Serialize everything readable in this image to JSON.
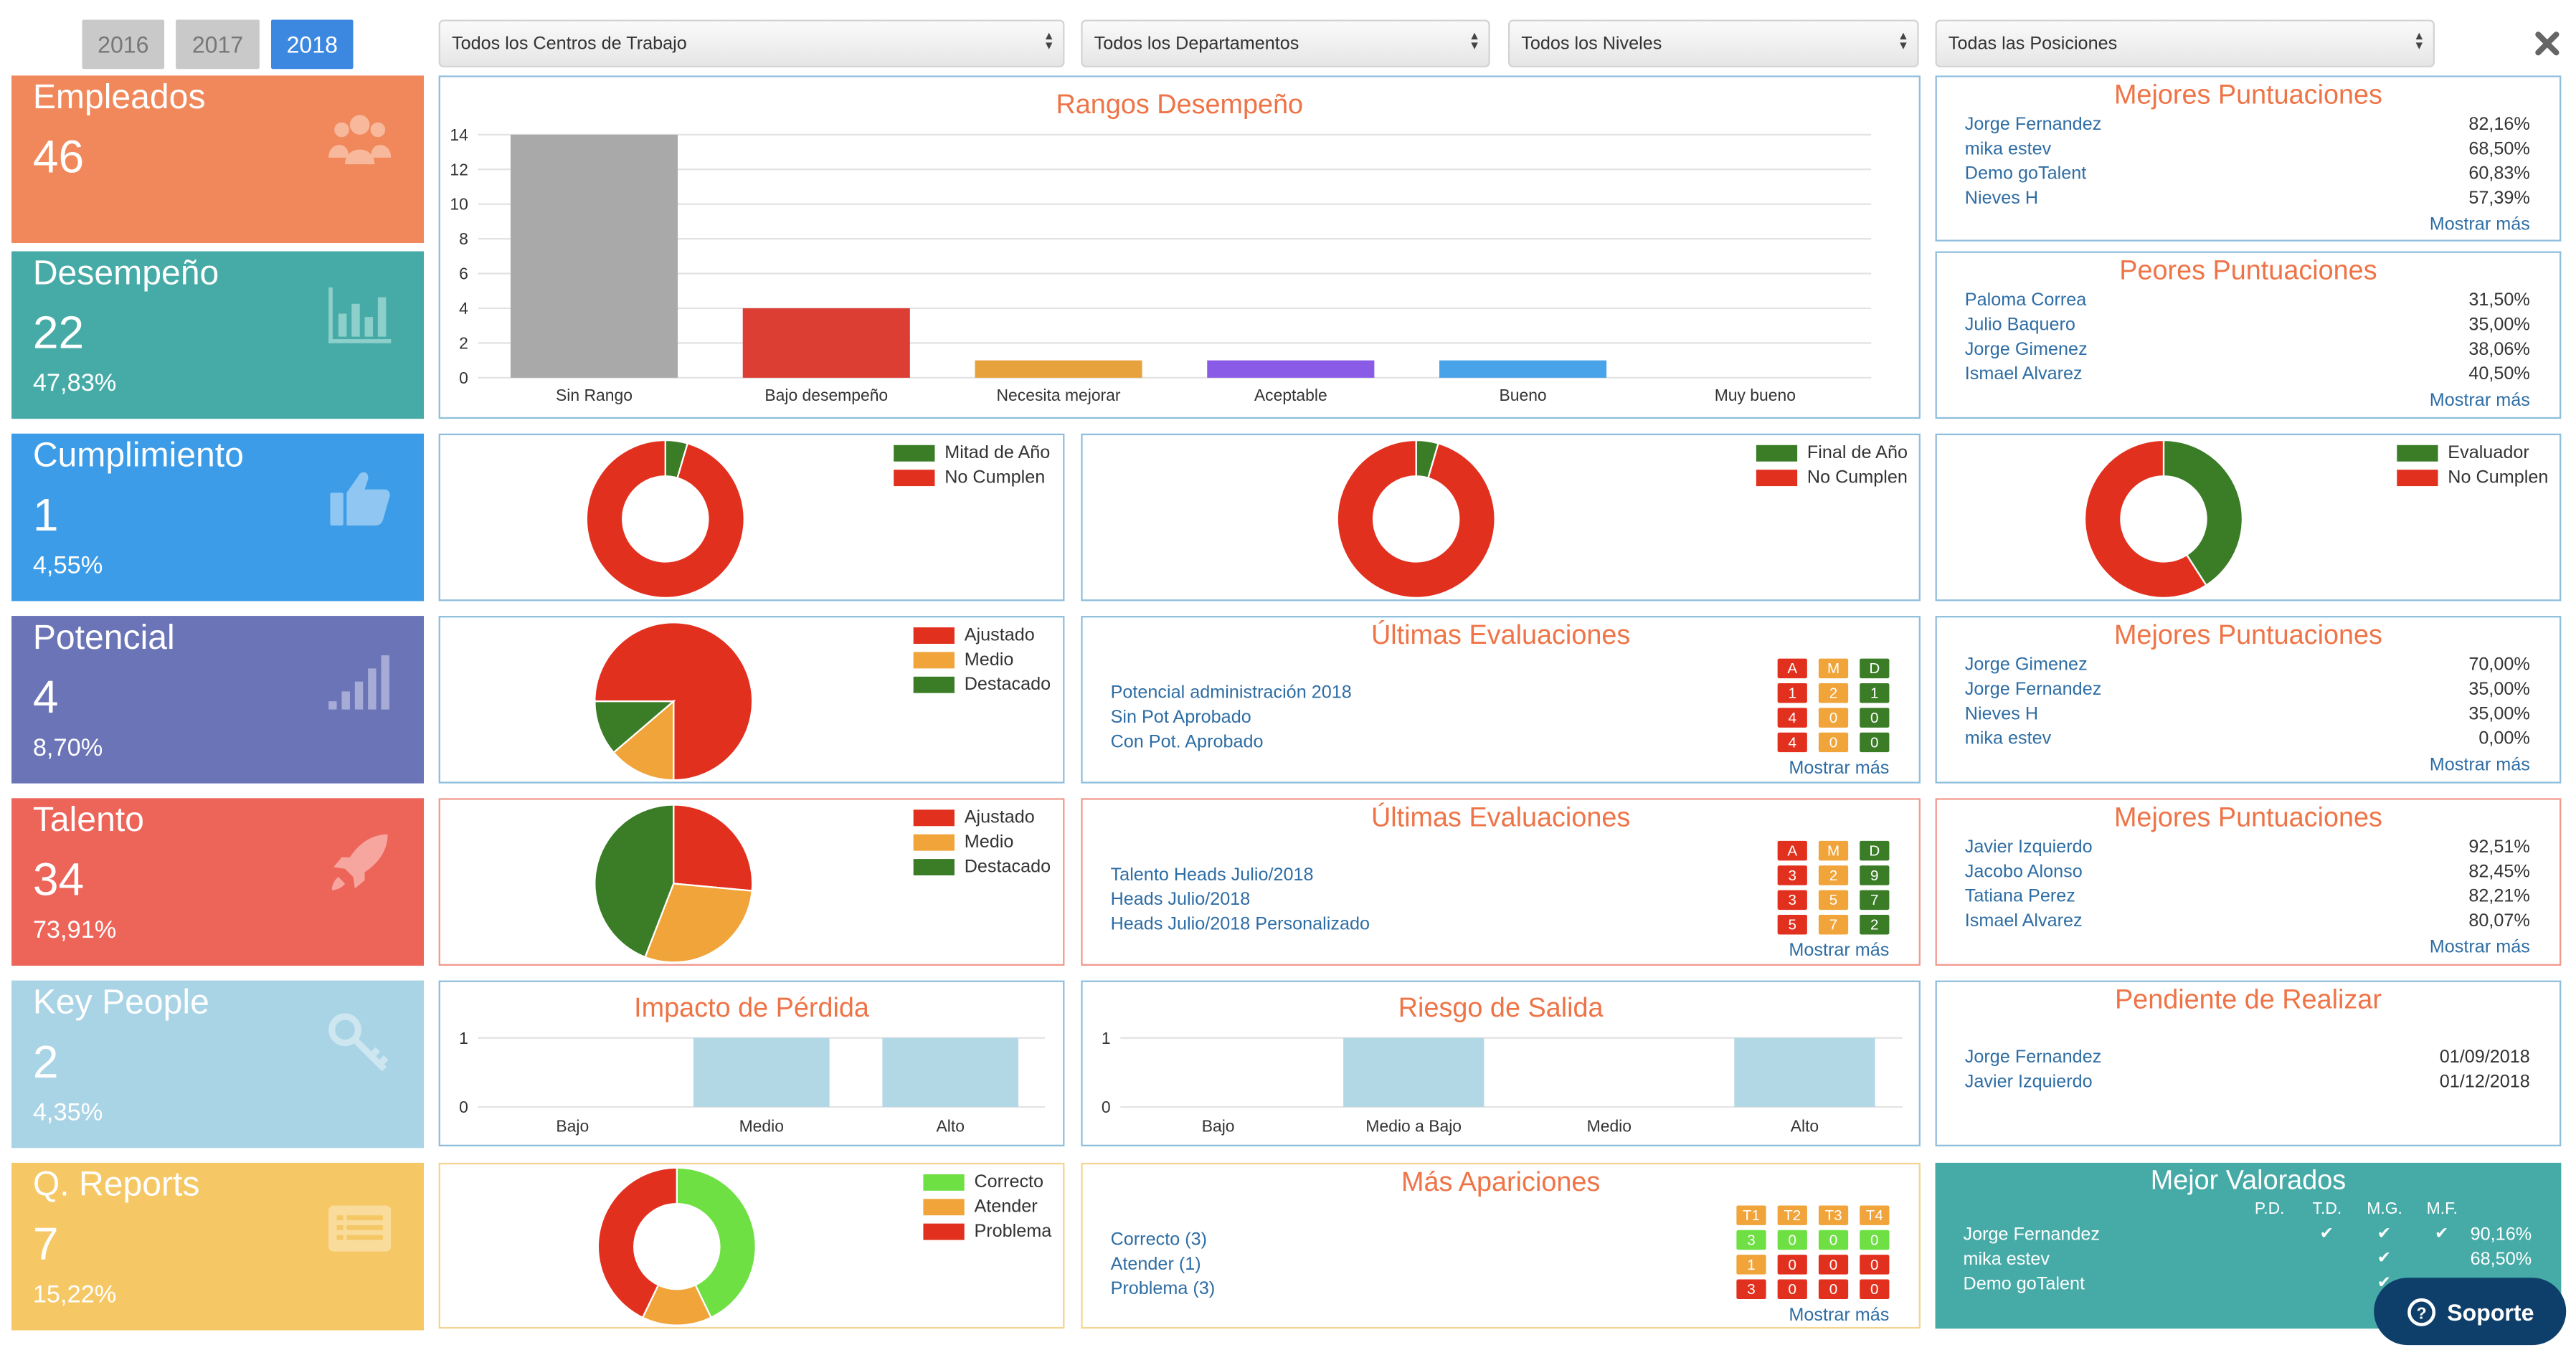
{
  "years": {
    "y2016": "2016",
    "y2017": "2017",
    "y2018": "2018"
  },
  "filters": {
    "centers": "Todos los Centros de Trabajo",
    "departments": "Todos los Departamentos",
    "levels": "Todos los Niveles",
    "positions": "Todas las Posiciones"
  },
  "stats": {
    "empleados": {
      "title": "Empleados",
      "value": "46",
      "color": "#f0885b"
    },
    "desempeno": {
      "title": "Desempeño",
      "value": "22",
      "pct": "47,83%",
      "color": "#46aba7"
    },
    "cumplimiento": {
      "title": "Cumplimiento",
      "value": "1",
      "pct": "4,55%",
      "color": "#3c9ce7"
    },
    "potencial": {
      "title": "Potencial",
      "value": "4",
      "pct": "8,70%",
      "color": "#6b74b6"
    },
    "talento": {
      "title": "Talento",
      "value": "34",
      "pct": "73,91%",
      "color": "#ed6459"
    },
    "keypeople": {
      "title": "Key People",
      "value": "2",
      "pct": "4,35%",
      "color": "#a9d4e5"
    },
    "qreports": {
      "title": "Q. Reports",
      "value": "7",
      "pct": "15,22%",
      "color": "#f5c865"
    }
  },
  "rangos": {
    "title": "Rangos Desempeño"
  },
  "chart_data": [
    {
      "type": "bar",
      "title": "Rangos Desempeño",
      "categories": [
        "Sin Rango",
        "Bajo desempeño",
        "Necesita mejorar",
        "Aceptable",
        "Bueno",
        "Muy bueno"
      ],
      "values": [
        14,
        4,
        1,
        1,
        1,
        0
      ],
      "colors": [
        "#a9a9a9",
        "#dc3e33",
        "#e8a23d",
        "#8a5be6",
        "#49a3e9",
        "#999999"
      ],
      "ylim": [
        0,
        14
      ],
      "yticks": [
        0,
        2,
        4,
        6,
        8,
        10,
        12,
        14
      ]
    },
    {
      "type": "pie",
      "donut": true,
      "labels": [
        "Mitad de Año",
        "No Cumplen"
      ],
      "values": [
        1,
        21
      ],
      "colors": [
        "#3a7d26",
        "#e2301f"
      ]
    },
    {
      "type": "pie",
      "donut": true,
      "labels": [
        "Final de Año",
        "No Cumplen"
      ],
      "values": [
        1,
        21
      ],
      "colors": [
        "#3a7d26",
        "#e2301f"
      ]
    },
    {
      "type": "pie",
      "donut": true,
      "labels": [
        "Evaluador",
        "No Cumplen"
      ],
      "values": [
        9,
        13
      ],
      "colors": [
        "#3a7d26",
        "#e2301f"
      ]
    },
    {
      "type": "pie",
      "labels": [
        "Ajustado",
        "Medio",
        "Destacado"
      ],
      "values": [
        3,
        0.55,
        0.45
      ],
      "colors": [
        "#e2301f",
        "#f0a43a",
        "#3a7d26"
      ]
    },
    {
      "type": "pie",
      "labels": [
        "Ajustado",
        "Medio",
        "Destacado"
      ],
      "values": [
        9,
        10,
        15
      ],
      "colors": [
        "#e2301f",
        "#f0a43a",
        "#3a7d26"
      ]
    },
    {
      "type": "bar",
      "title": "Impacto de Pérdida",
      "categories": [
        "Bajo",
        "Medio",
        "Alto"
      ],
      "values": [
        0,
        1,
        1
      ],
      "ylim": [
        0,
        1
      ],
      "yticks": [
        0,
        1
      ],
      "color": "#b2d8e6"
    },
    {
      "type": "bar",
      "title": "Riesgo de Salida",
      "categories": [
        "Bajo",
        "Medio a Bajo",
        "Medio",
        "Alto"
      ],
      "values": [
        0,
        1,
        0,
        1
      ],
      "ylim": [
        0,
        1
      ],
      "yticks": [
        0,
        1
      ],
      "color": "#b2d8e6"
    },
    {
      "type": "pie",
      "donut": true,
      "labels": [
        "Correcto",
        "Atender",
        "Problema"
      ],
      "values": [
        3,
        1,
        3
      ],
      "colors": [
        "#6ee043",
        "#f0a43a",
        "#e2301f"
      ]
    }
  ],
  "mejores1": {
    "title": "Mejores Puntuaciones",
    "more": "Mostrar más",
    "rows": [
      {
        "name": "Jorge Fernandez",
        "val": "82,16%"
      },
      {
        "name": "mika estev",
        "val": "68,50%"
      },
      {
        "name": "Demo goTalent",
        "val": "60,83%"
      },
      {
        "name": "Nieves H",
        "val": "57,39%"
      }
    ]
  },
  "peores": {
    "title": "Peores Puntuaciones",
    "more": "Mostrar más",
    "rows": [
      {
        "name": "Paloma Correa",
        "val": "31,50%"
      },
      {
        "name": "Julio Baquero",
        "val": "35,00%"
      },
      {
        "name": "Jorge Gimenez",
        "val": "38,06%"
      },
      {
        "name": "Ismael Alvarez",
        "val": "40,50%"
      }
    ]
  },
  "legends": {
    "cumpl1": [
      "Mitad de Año",
      "No Cumplen"
    ],
    "cumpl2": [
      "Final de Año",
      "No Cumplen"
    ],
    "cumpl3": [
      "Evaluador",
      "No Cumplen"
    ],
    "pot": [
      "Ajustado",
      "Medio",
      "Destacado"
    ],
    "tal": [
      "Ajustado",
      "Medio",
      "Destacado"
    ],
    "qr": [
      "Correcto",
      "Atender",
      "Problema"
    ]
  },
  "ultimas_pot": {
    "title": "Últimas Evaluaciones",
    "more": "Mostrar más",
    "headers": [
      "A",
      "M",
      "D"
    ],
    "items": [
      "Potencial administración 2018",
      "Sin Pot Aprobado",
      "Con Pot. Aprobado"
    ],
    "counts": [
      [
        "1",
        "2",
        "1"
      ],
      [
        "4",
        "0",
        "0"
      ],
      [
        "4",
        "0",
        "0"
      ]
    ]
  },
  "mejores_pot": {
    "title": "Mejores Puntuaciones",
    "more": "Mostrar más",
    "rows": [
      {
        "name": "Jorge Gimenez",
        "val": "70,00%"
      },
      {
        "name": "Jorge Fernandez",
        "val": "35,00%"
      },
      {
        "name": "Nieves H",
        "val": "35,00%"
      },
      {
        "name": "mika estev",
        "val": "0,00%"
      }
    ]
  },
  "ultimas_tal": {
    "title": "Últimas Evaluaciones",
    "more": "Mostrar más",
    "headers": [
      "A",
      "M",
      "D"
    ],
    "items": [
      "Talento Heads Julio/2018",
      "Heads Julio/2018",
      "Heads Julio/2018 Personalizado"
    ],
    "counts": [
      [
        "3",
        "2",
        "9"
      ],
      [
        "3",
        "5",
        "7"
      ],
      [
        "5",
        "7",
        "2"
      ]
    ]
  },
  "mejores_tal": {
    "title": "Mejores Puntuaciones",
    "more": "Mostrar más",
    "rows": [
      {
        "name": "Javier Izquierdo",
        "val": "92,51%"
      },
      {
        "name": "Jacobo Alonso",
        "val": "82,45%"
      },
      {
        "name": "Tatiana Perez",
        "val": "82,21%"
      },
      {
        "name": "Ismael Alvarez",
        "val": "80,07%"
      }
    ]
  },
  "impacto": {
    "title": "Impacto de Pérdida"
  },
  "riesgo": {
    "title": "Riesgo de Salida"
  },
  "pendiente": {
    "title": "Pendiente de Realizar",
    "rows": [
      {
        "name": "Jorge Fernandez",
        "val": "01/09/2018"
      },
      {
        "name": "Javier Izquierdo",
        "val": "01/12/2018"
      }
    ]
  },
  "apariciones": {
    "title": "Más Apariciones",
    "more": "Mostrar más",
    "headers": [
      "T1",
      "T2",
      "T3",
      "T4"
    ],
    "items": [
      "Correcto (3)",
      "Atender (1)",
      "Problema (3)"
    ],
    "counts": [
      [
        "3",
        "0",
        "0",
        "0"
      ],
      [
        "1",
        "0",
        "0",
        "0"
      ],
      [
        "3",
        "0",
        "0",
        "0"
      ]
    ]
  },
  "valorados": {
    "title": "Mejor Valorados",
    "cols": [
      "P.D.",
      "T.D.",
      "M.G.",
      "M.F."
    ],
    "rows": [
      {
        "name": "Jorge Fernandez",
        "checks": [
          false,
          true,
          true,
          true
        ],
        "val": "90,16%"
      },
      {
        "name": "mika estev",
        "checks": [
          false,
          false,
          true,
          false
        ],
        "val": "68,50%"
      },
      {
        "name": "Demo goTalent",
        "checks": [
          false,
          false,
          true,
          false
        ],
        "val": ""
      }
    ]
  },
  "support": {
    "label": "Soporte"
  }
}
